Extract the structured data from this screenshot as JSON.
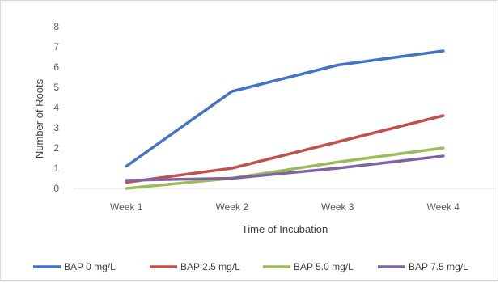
{
  "chart_data": {
    "type": "line",
    "title": "",
    "xlabel": "Time of Incubation",
    "ylabel": "Number of Roots",
    "categories": [
      "Week 1",
      "Week 2",
      "Week 3",
      "Week 4"
    ],
    "ylim": [
      0,
      8
    ],
    "yticks": [
      0,
      1,
      2,
      3,
      4,
      5,
      6,
      7,
      8
    ],
    "grid": false,
    "legend_position": "bottom",
    "series": [
      {
        "name": "BAP 0 mg/L",
        "color": "#4472c4",
        "values": [
          1.1,
          4.8,
          6.1,
          6.8
        ]
      },
      {
        "name": "BAP 2.5 mg/L",
        "color": "#c0504d",
        "values": [
          0.3,
          1.0,
          2.3,
          3.6
        ]
      },
      {
        "name": "BAP 5.0 mg/L",
        "color": "#9bbb59",
        "values": [
          0.0,
          0.5,
          1.3,
          2.0
        ]
      },
      {
        "name": "BAP 7.5 mg/L",
        "color": "#8064a2",
        "values": [
          0.4,
          0.5,
          1.0,
          1.6
        ]
      }
    ]
  }
}
